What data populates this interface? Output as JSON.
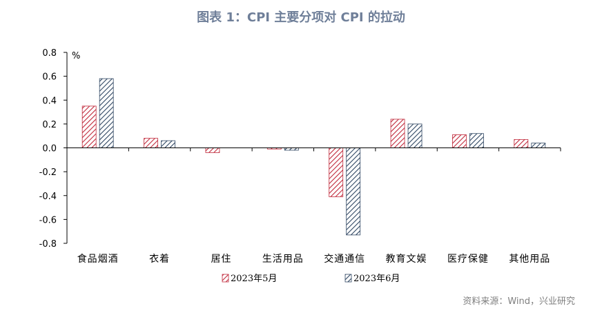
{
  "title": "图表 1：CPI 主要分项对 CPI 的拉动",
  "source": "资料来源：Wind，兴业研究",
  "colors": {
    "series1": "#c0283a",
    "series2": "#2f4662",
    "title": "#6f7f99",
    "source": "#7f7f7f"
  },
  "chart_data": {
    "type": "bar",
    "title": "图表 1：CPI 主要分项对 CPI 的拉动",
    "unit": "%",
    "categories": [
      "食品烟酒",
      "衣着",
      "居住",
      "生活用品",
      "交通通信",
      "教育文娱",
      "医疗保健",
      "其他用品"
    ],
    "series": [
      {
        "name": "2023年5月",
        "pattern": "diagonal-hatch",
        "values": [
          0.35,
          0.08,
          -0.04,
          -0.01,
          -0.41,
          0.24,
          0.11,
          0.07
        ]
      },
      {
        "name": "2023年6月",
        "pattern": "diagonal-hatch",
        "values": [
          0.58,
          0.06,
          0.0,
          -0.02,
          -0.73,
          0.2,
          0.12,
          0.04
        ]
      }
    ],
    "ylim": [
      -0.8,
      0.8
    ],
    "yticks": [
      "0.8",
      "0.6",
      "0.4",
      "0.2",
      "0.0",
      "-0.2",
      "-0.4",
      "-0.6",
      "-0.8"
    ],
    "ytick_values": [
      0.8,
      0.6,
      0.4,
      0.2,
      0.0,
      -0.2,
      -0.4,
      -0.6,
      -0.8
    ],
    "grid": false,
    "legend": "bottom-center"
  }
}
